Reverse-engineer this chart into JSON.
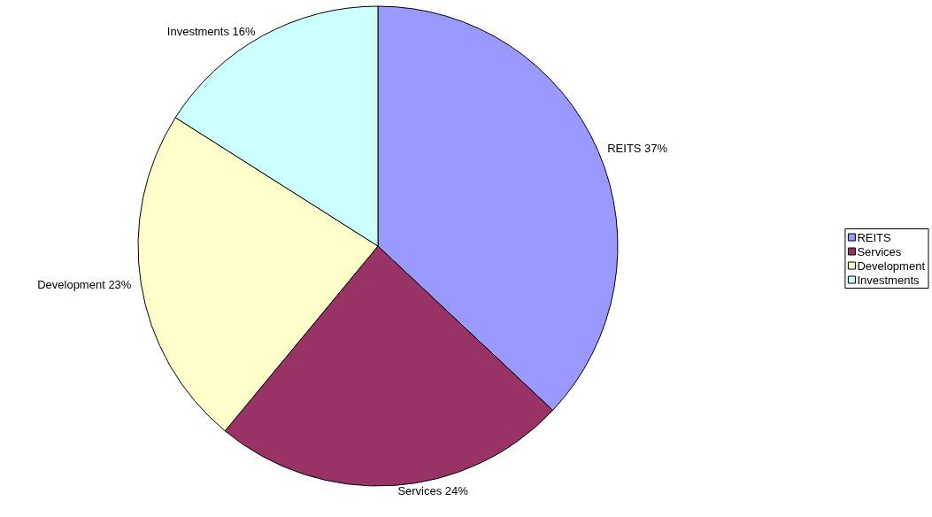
{
  "chart_data": {
    "type": "pie",
    "categories": [
      "REITS",
      "Services",
      "Development",
      "Investments"
    ],
    "values": [
      37,
      24,
      23,
      16
    ],
    "value_labels": [
      "37%",
      "24%",
      "23%",
      "16%"
    ],
    "colors": [
      "#9999ff",
      "#993366",
      "#ffffcc",
      "#ccffff"
    ],
    "legend": "right"
  }
}
